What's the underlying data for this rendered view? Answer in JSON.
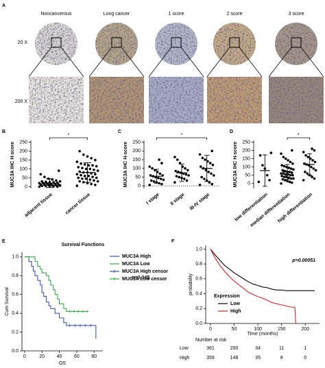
{
  "panel_a": {
    "label": "A",
    "columns": [
      "Noncancerous",
      "Lung cancer",
      "1 score",
      "2 score",
      "3 score"
    ],
    "rows": [
      "20 X",
      "200 X"
    ]
  },
  "chart_data": [
    {
      "panel": "B",
      "type": "strip",
      "y_label": "MUC3A IHC H-score",
      "categories": [
        "adjacent tissue",
        "cancer tissue"
      ],
      "values": [
        [
          0,
          0,
          2,
          3,
          5,
          5,
          6,
          8,
          8,
          10,
          10,
          12,
          12,
          15,
          15,
          18,
          20,
          20,
          22,
          25,
          25,
          28,
          30,
          30,
          35,
          40,
          45,
          55,
          70,
          90
        ],
        [
          5,
          10,
          15,
          20,
          25,
          30,
          30,
          35,
          40,
          45,
          45,
          50,
          50,
          55,
          60,
          60,
          65,
          70,
          70,
          75,
          80,
          80,
          85,
          90,
          95,
          100,
          100,
          105,
          110,
          115,
          120,
          120,
          125,
          130,
          140,
          150,
          160,
          170,
          180,
          200
        ]
      ],
      "mean": [
        20,
        80
      ],
      "sd": [
        25,
        55
      ],
      "significance": "*",
      "color": "#000000",
      "ylim": [
        -10,
        260
      ],
      "yticks": [
        0,
        50,
        100,
        150,
        200,
        250
      ]
    },
    {
      "panel": "C",
      "type": "strip",
      "y_label": "MUC3A IHC H-score",
      "categories": [
        "I stage",
        "II stage",
        "III-IV stage"
      ],
      "values": [
        [
          5,
          10,
          15,
          20,
          25,
          30,
          35,
          40,
          45,
          50,
          55,
          60,
          60,
          70,
          80,
          90,
          100,
          110,
          130,
          150
        ],
        [
          20,
          30,
          40,
          45,
          50,
          55,
          60,
          65,
          70,
          75,
          80,
          85,
          90,
          100,
          110,
          130,
          150,
          165
        ],
        [
          5,
          10,
          20,
          30,
          40,
          50,
          60,
          70,
          80,
          90,
          100,
          110,
          120,
          130,
          140,
          150,
          160,
          180,
          200
        ]
      ],
      "mean": [
        55,
        75,
        100
      ],
      "sd": [
        40,
        50,
        75
      ],
      "significance": "*",
      "zero_line": true,
      "color": "#000000",
      "ylim": [
        -15,
        260
      ],
      "yticks": [
        0,
        50,
        100,
        150,
        200,
        250
      ]
    },
    {
      "panel": "D",
      "type": "strip",
      "y_label": "MUC3A IHC H-score",
      "categories": [
        "low differentiation",
        "median differentiation",
        "high differentiation"
      ],
      "values": [
        [
          10,
          20,
          50,
          90,
          110,
          170,
          185
        ],
        [
          0,
          5,
          10,
          15,
          20,
          25,
          30,
          30,
          35,
          40,
          40,
          45,
          50,
          50,
          55,
          55,
          60,
          60,
          65,
          70,
          70,
          75,
          80,
          85,
          90,
          95,
          100,
          105,
          110,
          120,
          130,
          140,
          150,
          160,
          180,
          200
        ],
        [
          20,
          30,
          40,
          50,
          60,
          70,
          80,
          90,
          100,
          110,
          115,
          120,
          130,
          140,
          150,
          160,
          170,
          190,
          200,
          210
        ]
      ],
      "mean": [
        78,
        70,
        115
      ],
      "sd": [
        95,
        45,
        65
      ],
      "significance": "*",
      "color": "#000000",
      "ylim": [
        -30,
        260
      ],
      "yticks": [
        0,
        50,
        100,
        150,
        200,
        250
      ]
    },
    {
      "panel": "E",
      "type": "survival",
      "title": "Survival Functions",
      "x_label": "OS",
      "y_label": "Cum Survival",
      "annotation": "p=0.045",
      "step": true,
      "legend": "right",
      "xlim": [
        -3,
        90
      ],
      "xticks": [
        0,
        20,
        40,
        60,
        80
      ],
      "ylim": [
        0,
        1.05
      ],
      "yticks": [
        {
          "value": 0,
          "label": "0.0"
        },
        {
          "value": 0.2,
          "label": "0.2"
        },
        {
          "value": 0.4,
          "label": "0.4"
        },
        {
          "value": 0.6,
          "label": "0.6"
        },
        {
          "value": 0.8,
          "label": "0.8"
        },
        {
          "value": 1,
          "label": "1.0"
        }
      ],
      "series": [
        {
          "name": "MUC3A High",
          "color": "#3a55b4",
          "x": [
            0,
            5,
            8,
            10,
            12,
            15,
            18,
            20,
            22,
            25,
            28,
            30,
            35,
            40,
            45,
            48,
            82,
            82
          ],
          "values": [
            1,
            0.95,
            0.9,
            0.85,
            0.8,
            0.75,
            0.7,
            0.62,
            0.58,
            0.52,
            0.48,
            0.45,
            0.4,
            0.35,
            0.3,
            0.27,
            0.27,
            0.13
          ]
        },
        {
          "name": "MUC3A Low",
          "color": "#39a84a",
          "x": [
            0,
            12,
            15,
            18,
            20,
            25,
            28,
            30,
            33,
            35,
            38,
            40,
            45,
            48,
            72
          ],
          "values": [
            1,
            0.95,
            0.9,
            0.87,
            0.83,
            0.8,
            0.75,
            0.7,
            0.65,
            0.6,
            0.55,
            0.5,
            0.45,
            0.42,
            0.42
          ]
        },
        {
          "name": "MUC3A High censor",
          "color": "#3a55b4",
          "marker": "+",
          "x": [
            52,
            58,
            64,
            70,
            76
          ],
          "values": [
            0.27,
            0.27,
            0.27,
            0.27,
            0.27
          ]
        },
        {
          "name": "MUC3A Low censor",
          "color": "#39a84a",
          "marker": "+",
          "x": [
            52,
            57,
            62,
            67,
            72
          ],
          "values": [
            0.42,
            0.42,
            0.42,
            0.42,
            0.42
          ]
        }
      ]
    },
    {
      "panel": "F",
      "type": "survival",
      "x_label": "Time (months)",
      "y_label": "probability",
      "annotation": "p=0.00051",
      "step": false,
      "legend": "lower left",
      "legend_title": "Expression",
      "xlim": [
        -10,
        230
      ],
      "xticks": [
        0,
        50,
        100,
        150,
        200
      ],
      "ylim": [
        0,
        1.05
      ],
      "yticks": [
        {
          "value": 0,
          "label": "0.0"
        },
        {
          "value": 0.2,
          "label": "0.2"
        },
        {
          "value": 0.4,
          "label": "0.4"
        },
        {
          "value": 0.6,
          "label": "0.6"
        },
        {
          "value": 0.8,
          "label": "0.8"
        },
        {
          "value": 1,
          "label": "1.0"
        }
      ],
      "series": [
        {
          "name": "Low",
          "color": "#000000",
          "x": [
            0,
            10,
            20,
            30,
            40,
            50,
            60,
            70,
            80,
            90,
            100,
            110,
            120,
            130,
            140,
            150,
            160,
            180,
            220
          ],
          "values": [
            1,
            0.92,
            0.85,
            0.78,
            0.73,
            0.68,
            0.64,
            0.6,
            0.56,
            0.53,
            0.51,
            0.49,
            0.48,
            0.46,
            0.45,
            0.45,
            0.44,
            0.44,
            0.44
          ]
        },
        {
          "name": "High",
          "color": "#e31a1c",
          "x": [
            0,
            10,
            20,
            30,
            40,
            50,
            60,
            70,
            80,
            90,
            100,
            110,
            120,
            130,
            150,
            170,
            178,
            180
          ],
          "values": [
            1,
            0.88,
            0.78,
            0.7,
            0.63,
            0.57,
            0.52,
            0.47,
            0.42,
            0.39,
            0.36,
            0.34,
            0.31,
            0.28,
            0.25,
            0.22,
            0.22,
            0
          ]
        }
      ],
      "risk_table": {
        "title": "Number at risk",
        "rows": [
          {
            "name": "Low",
            "color": "#000000",
            "values": [
              361,
              200,
              34,
              11,
              1
            ]
          },
          {
            "name": "High",
            "color": "#e31a1c",
            "values": [
              359,
              148,
              35,
              8,
              0
            ]
          }
        ]
      }
    }
  ]
}
